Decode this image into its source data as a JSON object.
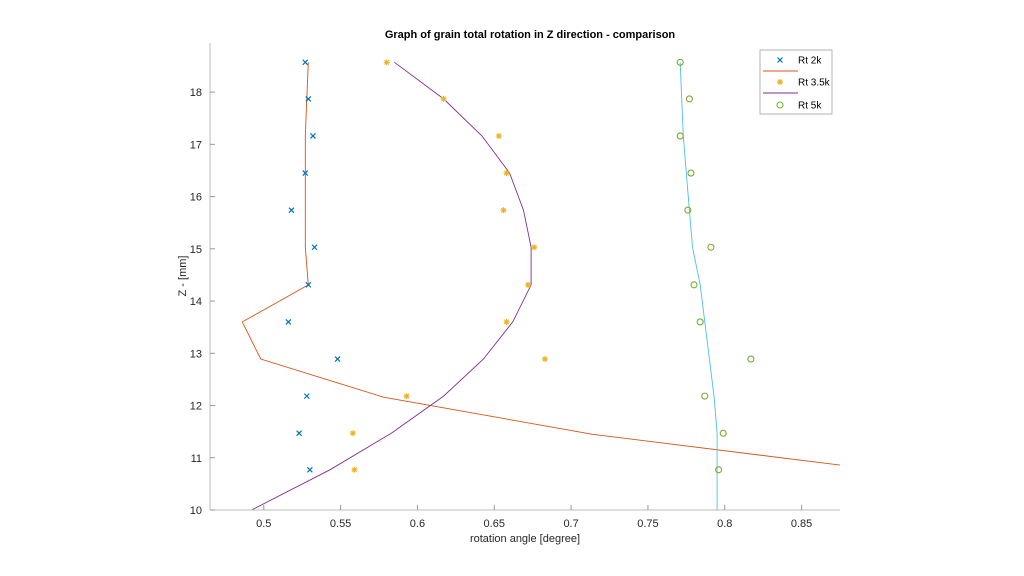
{
  "chart_data": {
    "type": "scatter",
    "title": "Graph of grain total rotation in Z direction - comparison",
    "xlabel": "rotation angle [degree]",
    "ylabel": "Z - [mm]",
    "xlim": [
      0.465,
      0.875
    ],
    "ylim": [
      10,
      18.94
    ],
    "xticks": [
      0.5,
      0.55,
      0.6,
      0.65,
      0.7,
      0.75,
      0.8,
      0.85
    ],
    "xtick_labels": [
      "0.5",
      "0.55",
      "0.6",
      "0.65",
      "0.7",
      "0.75",
      "0.8",
      "0.85"
    ],
    "yticks": [
      10,
      11,
      12,
      13,
      14,
      15,
      16,
      17,
      18
    ],
    "ytick_labels": [
      "10",
      "11",
      "12",
      "13",
      "14",
      "15",
      "16",
      "17",
      "18"
    ],
    "grid": false,
    "legend_position": "upper right",
    "legend": [
      {
        "label": "Rt 2k",
        "marker": "x",
        "color": "#0072BD"
      },
      {
        "label": "",
        "line": true,
        "color": "#D95319"
      },
      {
        "label": "Rt 3.5k",
        "marker": "*",
        "color": "#EDB120"
      },
      {
        "label": "",
        "line": true,
        "color": "#7E2F8E"
      },
      {
        "label": "Rt 5k",
        "marker": "o",
        "color": "#77AC30"
      }
    ],
    "series": [
      {
        "name": "Rt 2k",
        "kind": "scatter",
        "marker": "x",
        "color": "#0072BD",
        "x": [
          0.527,
          0.529,
          0.532,
          0.527,
          0.518,
          0.533,
          0.529,
          0.516,
          0.548,
          0.528,
          0.523,
          0.53
        ],
        "y": [
          18.57,
          17.87,
          17.16,
          16.45,
          15.74,
          15.03,
          14.31,
          13.6,
          12.89,
          12.18,
          11.47,
          10.77
        ]
      },
      {
        "name": "Rt 2k fit",
        "kind": "line",
        "color": "#D95319",
        "x": [
          0.529,
          0.528,
          0.527,
          0.527,
          0.527,
          0.527,
          0.529,
          0.486,
          0.498,
          0.578,
          0.714,
          0.875
        ],
        "y": [
          18.57,
          17.87,
          17.16,
          16.45,
          15.74,
          15.03,
          14.31,
          13.6,
          12.89,
          12.16,
          11.45,
          10.86
        ]
      },
      {
        "name": "Rt 3.5k",
        "kind": "scatter",
        "marker": "*",
        "color": "#EDB120",
        "x": [
          0.58,
          0.617,
          0.653,
          0.658,
          0.656,
          0.676,
          0.672,
          0.658,
          0.683,
          0.593,
          0.558,
          0.559
        ],
        "y": [
          18.57,
          17.87,
          17.16,
          16.45,
          15.74,
          15.03,
          14.31,
          13.6,
          12.89,
          12.18,
          11.47,
          10.77
        ]
      },
      {
        "name": "Rt 3.5k fit",
        "kind": "line",
        "color": "#7E2F8E",
        "x": [
          0.585,
          0.617,
          0.642,
          0.66,
          0.669,
          0.674,
          0.674,
          0.662,
          0.643,
          0.617,
          0.583,
          0.543,
          0.492
        ],
        "y": [
          18.57,
          17.87,
          17.16,
          16.45,
          15.74,
          15.03,
          14.31,
          13.6,
          12.89,
          12.18,
          11.47,
          10.77,
          10.0
        ]
      },
      {
        "name": "Rt 5k",
        "kind": "scatter",
        "marker": "o",
        "color": "#77AC30",
        "x": [
          0.771,
          0.777,
          0.771,
          0.778,
          0.776,
          0.791,
          0.78,
          0.784,
          0.817,
          0.787,
          0.799,
          0.796
        ],
        "y": [
          18.57,
          17.87,
          17.16,
          16.45,
          15.74,
          15.03,
          14.31,
          13.6,
          12.89,
          12.18,
          11.47,
          10.77
        ]
      },
      {
        "name": "Rt 5k fit",
        "kind": "line",
        "color": "#4DBEEE",
        "x": [
          0.771,
          0.772,
          0.773,
          0.775,
          0.777,
          0.779,
          0.784,
          0.787,
          0.79,
          0.793,
          0.795,
          0.795,
          0.795
        ],
        "y": [
          18.57,
          17.87,
          17.16,
          16.45,
          15.74,
          15.03,
          14.31,
          13.6,
          12.89,
          12.18,
          11.47,
          10.77,
          10.0
        ]
      }
    ]
  }
}
